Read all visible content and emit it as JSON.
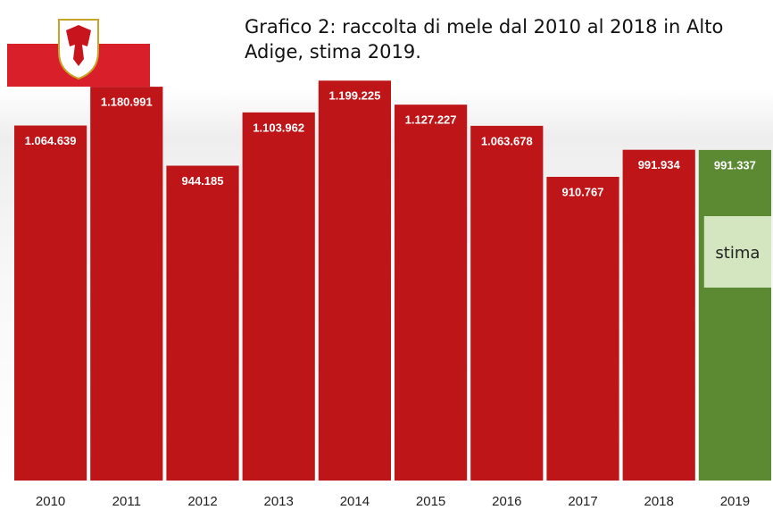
{
  "chart_data": {
    "type": "bar",
    "title": "Grafico 2: raccolta di mele dal 2010 al 2018 in Alto Adige, stima 2019.",
    "categories": [
      "2010",
      "2011",
      "2012",
      "2013",
      "2014",
      "2015",
      "2016",
      "2017",
      "2018",
      "2019"
    ],
    "values": [
      1064639,
      1180991,
      944185,
      1103962,
      1199225,
      1127227,
      1063678,
      910767,
      991934,
      991337
    ],
    "value_labels": [
      "1.064.639",
      "1.180.991",
      "944.185",
      "1.103.962",
      "1.199.225",
      "1.127.227",
      "1.063.678",
      "910.767",
      "991.934",
      "991.337"
    ],
    "colors": [
      "#be1519",
      "#be1519",
      "#be1519",
      "#be1519",
      "#be1519",
      "#be1519",
      "#be1519",
      "#be1519",
      "#be1519",
      "#5b8a33"
    ],
    "annotation": "stima",
    "ylim": [
      0,
      1200000
    ]
  }
}
